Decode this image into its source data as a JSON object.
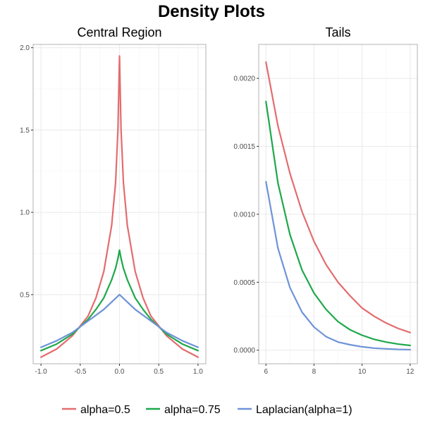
{
  "title": "Density Plots",
  "colors": {
    "alpha_0_5": "#E36C6E",
    "alpha_0_75": "#1DA84A",
    "laplacian": "#6E93D8"
  },
  "legend": [
    {
      "label": "alpha=0.5",
      "color": "#E36C6E"
    },
    {
      "label": "alpha=0.75",
      "color": "#1DA84A"
    },
    {
      "label": "Laplacian(alpha=1)",
      "color": "#6E93D8"
    }
  ],
  "chart_data": [
    {
      "type": "line",
      "title": "Central Region",
      "xlabel": "",
      "ylabel": "",
      "xlim": [
        -1.1,
        1.1
      ],
      "ylim": [
        0.08,
        2.02
      ],
      "xticks": [
        -1.0,
        -0.5,
        0.0,
        0.5,
        1.0
      ],
      "xtick_labels": [
        "-1.0",
        "-0.5",
        "0.0",
        "0.5",
        "1.0"
      ],
      "yticks": [
        0.5,
        1.0,
        1.5,
        2.0
      ],
      "ytick_labels": [
        "0.5",
        "1.0",
        "1.5",
        "2.0"
      ],
      "grid": true,
      "series": [
        {
          "name": "alpha=0.5",
          "color": "#E36C6E",
          "x": [
            -1.0,
            -0.8,
            -0.6,
            -0.4,
            -0.3,
            -0.2,
            -0.1,
            -0.05,
            -0.02,
            0.0,
            0.02,
            0.05,
            0.1,
            0.2,
            0.3,
            0.4,
            0.6,
            0.8,
            1.0
          ],
          "y": [
            0.12,
            0.17,
            0.25,
            0.37,
            0.48,
            0.64,
            0.92,
            1.18,
            1.5,
            1.95,
            1.5,
            1.18,
            0.92,
            0.64,
            0.48,
            0.37,
            0.25,
            0.17,
            0.12
          ]
        },
        {
          "name": "alpha=0.75",
          "color": "#1DA84A",
          "x": [
            -1.0,
            -0.8,
            -0.6,
            -0.4,
            -0.3,
            -0.2,
            -0.1,
            -0.05,
            -0.02,
            0.0,
            0.02,
            0.05,
            0.1,
            0.2,
            0.3,
            0.4,
            0.6,
            0.8,
            1.0
          ],
          "y": [
            0.16,
            0.2,
            0.26,
            0.35,
            0.41,
            0.48,
            0.59,
            0.66,
            0.72,
            0.77,
            0.72,
            0.66,
            0.59,
            0.48,
            0.41,
            0.35,
            0.26,
            0.2,
            0.16
          ]
        },
        {
          "name": "Laplacian(alpha=1)",
          "color": "#6E93D8",
          "x": [
            -1.0,
            -0.8,
            -0.6,
            -0.4,
            -0.2,
            0.0,
            0.2,
            0.4,
            0.6,
            0.8,
            1.0
          ],
          "y": [
            0.18,
            0.22,
            0.27,
            0.34,
            0.41,
            0.5,
            0.41,
            0.34,
            0.27,
            0.22,
            0.18
          ]
        }
      ]
    },
    {
      "type": "line",
      "title": "Tails",
      "xlabel": "",
      "ylabel": "",
      "xlim": [
        5.7,
        12.3
      ],
      "ylim": [
        -0.0001,
        0.00225
      ],
      "xticks": [
        6,
        8,
        10,
        12
      ],
      "xtick_labels": [
        "6",
        "8",
        "10",
        "12"
      ],
      "yticks": [
        0.0,
        0.0005,
        0.001,
        0.0015,
        0.002
      ],
      "ytick_labels": [
        "0.0000",
        "0.0005",
        "0.0010",
        "0.0015",
        "0.0020"
      ],
      "grid": true,
      "series": [
        {
          "name": "alpha=0.5",
          "color": "#E36C6E",
          "x": [
            6,
            6.5,
            7,
            7.5,
            8,
            8.5,
            9,
            9.5,
            10,
            10.5,
            11,
            11.5,
            12
          ],
          "y": [
            0.00212,
            0.00165,
            0.0013,
            0.00102,
            0.0008,
            0.00063,
            0.0005,
            0.0004,
            0.00031,
            0.00025,
            0.0002,
            0.00016,
            0.00013
          ]
        },
        {
          "name": "alpha=0.75",
          "color": "#1DA84A",
          "x": [
            6,
            6.5,
            7,
            7.5,
            8,
            8.5,
            9,
            9.5,
            10,
            10.5,
            11,
            11.5,
            12
          ],
          "y": [
            0.00183,
            0.00123,
            0.00085,
            0.00059,
            0.00042,
            0.0003,
            0.00021,
            0.00015,
            0.00011,
            8e-05,
            6e-05,
            4.5e-05,
            3.5e-05
          ]
        },
        {
          "name": "Laplacian(alpha=1)",
          "color": "#6E93D8",
          "x": [
            6,
            6.5,
            7,
            7.5,
            8,
            8.5,
            9,
            9.5,
            10,
            10.5,
            11,
            11.5,
            12
          ],
          "y": [
            0.00124,
            0.00075,
            0.00046,
            0.00028,
            0.00017,
            0.0001,
            6e-05,
            4e-05,
            2.5e-05,
            1.5e-05,
            1e-05,
            6e-06,
            4e-06
          ]
        }
      ]
    }
  ]
}
